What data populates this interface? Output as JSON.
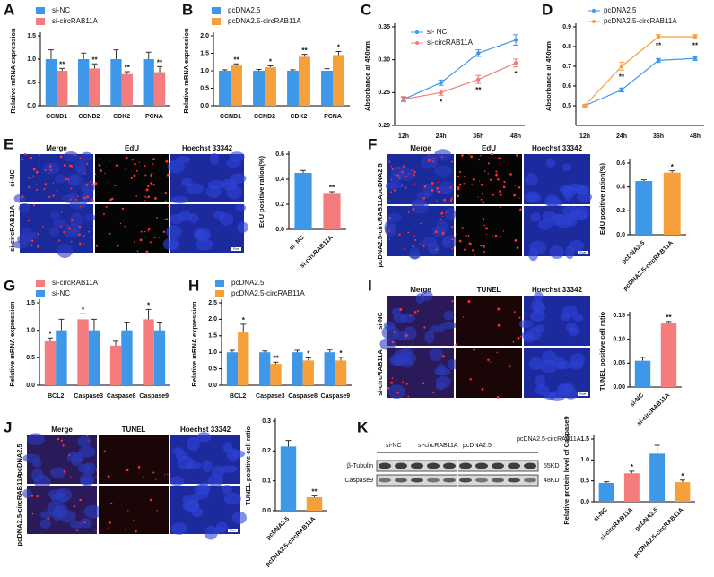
{
  "chart_data": [
    {
      "type": "bar",
      "panel": "A",
      "ylabel": "Relative mRNA expression",
      "categories": [
        "CCND1",
        "CCND2",
        "CDK2",
        "PCNA"
      ],
      "series": [
        {
          "name": "si-NC",
          "color": "#3f97e8",
          "values": [
            1,
            1,
            1,
            1
          ],
          "errors": [
            0.2,
            0.13,
            0.2,
            0.15
          ],
          "stars": [
            null,
            null,
            null,
            null
          ]
        },
        {
          "name": "si-circRAB11A",
          "color": "#f47c7c",
          "values": [
            0.75,
            0.8,
            0.68,
            0.72
          ],
          "errors": [
            0.05,
            0.1,
            0.05,
            0.12
          ],
          "stars": [
            "**",
            "**",
            "**",
            "**"
          ]
        }
      ],
      "ylim": [
        0,
        1.5
      ],
      "yticks": [
        {
          "value": 0,
          "label": "0.0"
        },
        0.5,
        {
          "value": 1,
          "label": "1.0"
        },
        1.5
      ]
    },
    {
      "type": "bar",
      "panel": "B",
      "ylabel": "Relative mRNA expression",
      "categories": [
        "CCND1",
        "CCND2",
        "CDK2",
        "PCNA"
      ],
      "series": [
        {
          "name": "pcDNA2.5",
          "color": "#3f97e8",
          "values": [
            1,
            1,
            1,
            1
          ],
          "errors": [
            0.03,
            0.04,
            0.03,
            0.06
          ],
          "stars": [
            null,
            null,
            null,
            null
          ]
        },
        {
          "name": "pcDNA2.5-circRAB11A",
          "color": "#f5a03a",
          "values": [
            1.15,
            1.1,
            1.4,
            1.45
          ],
          "errors": [
            0.05,
            0.04,
            0.07,
            0.1
          ],
          "stars": [
            "**",
            "*",
            "**",
            "*"
          ]
        }
      ],
      "ylim": [
        0,
        2
      ],
      "yticks": [
        {
          "value": 0,
          "label": "0.0"
        },
        0.5,
        {
          "value": 1,
          "label": "1.0"
        },
        1.5,
        {
          "value": 2,
          "label": "2.0"
        }
      ]
    },
    {
      "type": "line",
      "panel": "C",
      "ylabel": "Absorbance at 450nm",
      "categories": [
        "12h",
        "24h",
        "36h",
        "48h"
      ],
      "series": [
        {
          "name": "si- NC",
          "color": "#3f97e8",
          "values": [
            0.24,
            0.265,
            0.31,
            0.33
          ],
          "errors": [
            0.003,
            0.004,
            0.005,
            0.008
          ],
          "stars": [
            null,
            null,
            null,
            null
          ]
        },
        {
          "name": "si-circRAB11A",
          "color": "#f47c7c",
          "values": [
            0.24,
            0.25,
            0.27,
            0.295
          ],
          "errors": [
            0.004,
            0.004,
            0.006,
            0.006
          ],
          "stars": [
            null,
            "*",
            "**",
            "*"
          ]
        }
      ],
      "ylim": [
        0.2,
        0.35
      ],
      "yticks": [
        {
          "value": 0.2,
          "label": "0.20"
        },
        0.25,
        {
          "value": 0.3,
          "label": "0.30"
        },
        0.35
      ]
    },
    {
      "type": "line",
      "panel": "D",
      "ylabel": "Absorbance at 450nm",
      "categories": [
        "12h",
        "24h",
        "36h",
        "48h"
      ],
      "series": [
        {
          "name": "pcDNA2.5",
          "color": "#3f97e8",
          "values": [
            0.5,
            0.58,
            0.73,
            0.74
          ],
          "errors": [
            0.005,
            0.01,
            0.01,
            0.01
          ],
          "stars": [
            null,
            null,
            null,
            null
          ]
        },
        {
          "name": "pcDNA2.5-circRAB11A",
          "color": "#f5a03a",
          "values": [
            0.5,
            0.7,
            0.85,
            0.85
          ],
          "errors": [
            0.005,
            0.02,
            0.01,
            0.01
          ],
          "stars": [
            null,
            "**",
            "**",
            "**"
          ]
        }
      ],
      "ylim": [
        0.4,
        0.9
      ],
      "yticks": [
        0.5,
        0.6,
        0.7,
        0.8,
        0.9
      ]
    },
    {
      "type": "bar",
      "ylabel": "EdU positive ration(%)",
      "categories": [
        "si- NC",
        "si-circRAB11A"
      ],
      "values": [
        0.45,
        0.29
      ],
      "errors": [
        0.02,
        0.01
      ],
      "colors": [
        "#3f97e8",
        "#f47c7c"
      ],
      "stars": [
        null,
        "**"
      ],
      "ylim": [
        0,
        0.6
      ],
      "yticks": [
        {
          "value": 0,
          "label": "0.0"
        },
        0.2,
        0.4,
        0.6
      ]
    },
    {
      "type": "bar",
      "ylabel": "EdU positive ration(%)",
      "categories": [
        "pcDNA2.5",
        "pcDNA2.5-circRAB11A"
      ],
      "values": [
        0.45,
        0.52
      ],
      "errors": [
        0.01,
        0.015
      ],
      "colors": [
        "#3f97e8",
        "#f5a03a"
      ],
      "stars": [
        null,
        "*"
      ],
      "ylim": [
        0,
        0.6
      ],
      "yticks": [
        {
          "value": 0,
          "label": "0.0"
        },
        0.2,
        0.4,
        0.6
      ]
    },
    {
      "type": "bar",
      "panel": "G",
      "ylabel": "Relative mRNA expression",
      "categories": [
        "BCL2",
        "Caspase3",
        "Caspase8",
        "Caspase9"
      ],
      "series": [
        {
          "name": "si-circRAB11A",
          "color": "#f47c7c",
          "values": [
            0.8,
            1.2,
            0.72,
            1.2
          ],
          "errors": [
            0.06,
            0.1,
            0.08,
            0.18
          ],
          "stars": [
            "*",
            "*",
            null,
            "*"
          ]
        },
        {
          "name": "si-NC",
          "color": "#3f97e8",
          "values": [
            1,
            1,
            1,
            1
          ],
          "errors": [
            0.2,
            0.2,
            0.15,
            0.15
          ],
          "stars": [
            null,
            null,
            null,
            null
          ]
        }
      ],
      "ylim": [
        0,
        1.5
      ],
      "yticks": [
        {
          "value": 0,
          "label": "0.0"
        },
        0.5,
        {
          "value": 1,
          "label": "1.0"
        },
        1.5
      ]
    },
    {
      "type": "bar",
      "panel": "H",
      "ylabel": "Relative mRNA expression",
      "categories": [
        "BCL2",
        "Caspase3",
        "Caspase8",
        "Caspase9"
      ],
      "series": [
        {
          "name": "pcDNA2.5",
          "color": "#3f97e8",
          "values": [
            1,
            1,
            1,
            1
          ],
          "errors": [
            0.06,
            0.04,
            0.06,
            0.08
          ],
          "stars": [
            null,
            null,
            null,
            null
          ]
        },
        {
          "name": "pcDNA2.5-circRAB11A",
          "color": "#f5a03a",
          "values": [
            1.6,
            0.65,
            0.75,
            0.75
          ],
          "errors": [
            0.25,
            0.05,
            0.08,
            0.1
          ],
          "stars": [
            "*",
            "**",
            "*",
            "*"
          ]
        }
      ],
      "ylim": [
        0,
        2.5
      ],
      "yticks": [
        {
          "value": 0,
          "label": "0.0"
        },
        0.5,
        {
          "value": 1,
          "label": "1.0"
        },
        1.5,
        {
          "value": 2,
          "label": "2.0"
        },
        2.5
      ]
    },
    {
      "type": "bar",
      "ylabel": "TUNEL positive cell ratio",
      "categories": [
        "si-NC",
        "si-circRAB11A"
      ],
      "values": [
        0.055,
        0.133
      ],
      "errors": [
        0.007,
        0.004
      ],
      "colors": [
        "#3f97e8",
        "#f47c7c"
      ],
      "stars": [
        null,
        "**"
      ],
      "ylim": [
        0,
        0.15
      ],
      "yticks": [
        {
          "value": 0,
          "label": "0.00"
        },
        0.05,
        {
          "value": 0.1,
          "label": "0.10"
        },
        0.15
      ]
    },
    {
      "type": "bar",
      "ylabel": "TUNEL positive cell ratio",
      "categories": [
        "pcDNA2.5",
        "pcDNA2.5-circRAB11A"
      ],
      "values": [
        0.215,
        0.045
      ],
      "errors": [
        0.02,
        0.005
      ],
      "colors": [
        "#3f97e8",
        "#f5a03a"
      ],
      "stars": [
        null,
        "**"
      ],
      "ylim": [
        0,
        0.3
      ],
      "yticks": [
        {
          "value": 0,
          "label": "0.0"
        },
        0.1,
        0.2,
        0.3
      ]
    },
    {
      "type": "bar",
      "ylabel": "Relative protein level of Caspase9",
      "categories": [
        "si-NC",
        "si-circRAB11A",
        "pcDNA2.5",
        "pcDNA2.5-circRAB11A"
      ],
      "values": [
        0.45,
        0.68,
        1.15,
        0.47
      ],
      "errors": [
        0.03,
        0.05,
        0.2,
        0.05
      ],
      "colors": [
        "#3f97e8",
        "#f47c7c",
        "#3f97e8",
        "#f5a03a"
      ],
      "stars": [
        null,
        "*",
        null,
        "*"
      ],
      "ylim": [
        0,
        1.5
      ],
      "yticks": [
        {
          "value": 0,
          "label": "0.0"
        },
        0.5,
        {
          "value": 1,
          "label": "1.0"
        },
        1.5
      ]
    }
  ],
  "image_panels": [
    {
      "panel": "E",
      "columns": [
        "Merge",
        "EdU",
        "Hoechst 33342"
      ],
      "rows": [
        "si-NC",
        "si-circRAB11A"
      ],
      "scale_bar": "10 μm"
    },
    {
      "panel": "F",
      "columns": [
        "Merge",
        "EdU",
        "Hoechst 33342"
      ],
      "rows": [
        "pcDNA2.5",
        "pcDNA2.5-circRAB11A"
      ],
      "scale_bar": "10 μm"
    },
    {
      "panel": "I",
      "columns": [
        "Merge",
        "TUNEL",
        "Hoechst 33342"
      ],
      "rows": [
        "si-NC",
        "si-circRAB11A"
      ],
      "scale_bar": "10 μm"
    },
    {
      "panel": "J",
      "columns": [
        "Merge",
        "TUNEL",
        "Hoechst 33342"
      ],
      "rows": [
        "pcDNA2.5",
        "pcDNA2.5-circRAB11A"
      ],
      "scale_bar": "10 μm"
    }
  ],
  "blot": {
    "panel": "K",
    "lanes": [
      "si-NC",
      "si-circRAB11A",
      "pcDNA2.5",
      "pcDNA2.5-circRAB11A"
    ],
    "proteins": [
      "β-Tubulin",
      "Caspase9"
    ],
    "sizes": [
      "55KD",
      "48KD"
    ]
  }
}
